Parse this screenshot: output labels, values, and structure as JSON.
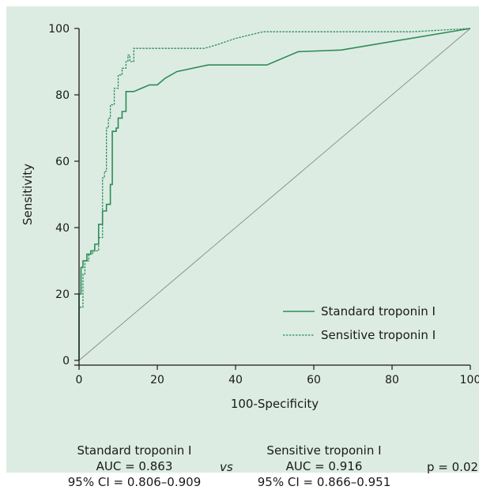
{
  "chart_data": {
    "type": "line",
    "xlabel": "100-Specificity",
    "ylabel": "Sensitivity",
    "xlim": [
      0,
      100
    ],
    "ylim": [
      0,
      100
    ],
    "xticks": [
      "0",
      "20",
      "40",
      "60",
      "80",
      "100"
    ],
    "yticks": [
      "0",
      "20",
      "40",
      "60",
      "80",
      "100"
    ],
    "legend_position": "bottom-right",
    "series": [
      {
        "name": "Standard troponin I",
        "style": "solid",
        "color": "#2e8b57",
        "points": [
          [
            0,
            0
          ],
          [
            0,
            16
          ],
          [
            0,
            20
          ],
          [
            0.5,
            20
          ],
          [
            0.5,
            28
          ],
          [
            1,
            28
          ],
          [
            1,
            30
          ],
          [
            2,
            30
          ],
          [
            2,
            32
          ],
          [
            3,
            32
          ],
          [
            3,
            33
          ],
          [
            4,
            33
          ],
          [
            4,
            35
          ],
          [
            5,
            35
          ],
          [
            5,
            41
          ],
          [
            6,
            41
          ],
          [
            6,
            45
          ],
          [
            7,
            45
          ],
          [
            7,
            47
          ],
          [
            8,
            47
          ],
          [
            8,
            53
          ],
          [
            8.5,
            53
          ],
          [
            8.5,
            69
          ],
          [
            9.5,
            69
          ],
          [
            9.5,
            70
          ],
          [
            10,
            70
          ],
          [
            10,
            73
          ],
          [
            11,
            73
          ],
          [
            11,
            75
          ],
          [
            12,
            75
          ],
          [
            12,
            81
          ],
          [
            14,
            81
          ],
          [
            14,
            81
          ],
          [
            16,
            82
          ],
          [
            18,
            83
          ],
          [
            20,
            83
          ],
          [
            22,
            85
          ],
          [
            25,
            87
          ],
          [
            33,
            89
          ],
          [
            48,
            89
          ],
          [
            56,
            93
          ],
          [
            67,
            93.5
          ],
          [
            100,
            100
          ]
        ]
      },
      {
        "name": "Sensitive troponin I",
        "style": "dashed",
        "color": "#2e8b57",
        "points": [
          [
            0,
            0
          ],
          [
            0,
            16
          ],
          [
            1,
            16
          ],
          [
            1,
            26
          ],
          [
            1.5,
            26
          ],
          [
            1.5,
            30
          ],
          [
            2.5,
            30
          ],
          [
            2.5,
            32
          ],
          [
            3.5,
            32
          ],
          [
            3.5,
            33
          ],
          [
            5,
            33
          ],
          [
            5,
            37
          ],
          [
            6,
            37
          ],
          [
            6,
            55
          ],
          [
            6.5,
            55
          ],
          [
            6.5,
            57
          ],
          [
            7,
            57
          ],
          [
            7,
            70
          ],
          [
            7.5,
            70
          ],
          [
            7.5,
            73
          ],
          [
            8,
            73
          ],
          [
            8,
            77
          ],
          [
            9,
            77
          ],
          [
            9,
            82
          ],
          [
            10,
            82
          ],
          [
            10,
            86
          ],
          [
            11,
            86
          ],
          [
            11,
            88
          ],
          [
            12,
            88
          ],
          [
            12,
            90
          ],
          [
            12.5,
            90
          ],
          [
            12.5,
            92
          ],
          [
            13,
            92
          ],
          [
            13,
            90
          ],
          [
            14,
            90
          ],
          [
            14,
            94
          ],
          [
            32,
            94
          ],
          [
            35,
            95
          ],
          [
            40,
            97
          ],
          [
            47,
            99
          ],
          [
            85,
            99
          ],
          [
            100,
            100
          ]
        ]
      }
    ],
    "reference_line": {
      "points": [
        [
          0,
          0
        ],
        [
          100,
          100
        ]
      ],
      "color": "#888888"
    }
  },
  "stats": {
    "left": {
      "title": "Standard troponin I",
      "auc": "AUC = 0.863",
      "ci": "95% CI = 0.806–0.909"
    },
    "vs": "vs",
    "right": {
      "title": "Sensitive troponin I",
      "auc": "AUC = 0.916",
      "ci": "95% CI = 0.866–0.951"
    },
    "p": "p = 0.02"
  }
}
